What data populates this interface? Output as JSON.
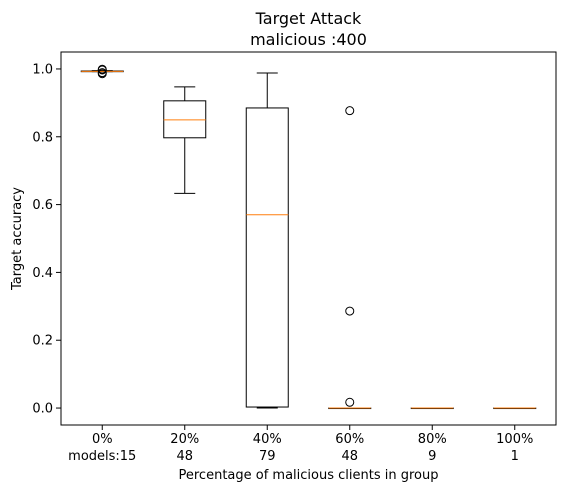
{
  "chart_data": {
    "type": "box",
    "title": "Target Attack",
    "subtitle": "malicious :400",
    "xlabel": "Percentage of malicious clients in group",
    "ylabel": "Target accuracy",
    "ylim": [
      -0.05,
      1.05
    ],
    "yticks": [
      0.0,
      0.2,
      0.4,
      0.6,
      0.8,
      1.0
    ],
    "ytick_labels": [
      "0.0",
      "0.2",
      "0.4",
      "0.6",
      "0.8",
      "1.0"
    ],
    "categories": [
      "0%",
      "20%",
      "40%",
      "60%",
      "80%",
      "100%"
    ],
    "counts": [
      "models:15",
      "48",
      "79",
      "48",
      "9",
      "1"
    ],
    "boxes": [
      {
        "whisker_low": 0.992,
        "q1": 0.992,
        "median": 0.993,
        "q3": 0.994,
        "whisker_high": 0.995,
        "outliers": [
          0.986,
          0.989,
          0.997,
          0.999
        ]
      },
      {
        "whisker_low": 0.633,
        "q1": 0.797,
        "median": 0.85,
        "q3": 0.906,
        "whisker_high": 0.947,
        "outliers": []
      },
      {
        "whisker_low": 0.0,
        "q1": 0.003,
        "median": 0.57,
        "q3": 0.885,
        "whisker_high": 0.988,
        "outliers": []
      },
      {
        "whisker_low": 0.0,
        "q1": 0.0,
        "median": 0.0,
        "q3": 0.0,
        "whisker_high": 0.0,
        "outliers": [
          0.017,
          0.286,
          0.877
        ]
      },
      {
        "whisker_low": 0.0,
        "q1": 0.0,
        "median": 0.0,
        "q3": 0.0,
        "whisker_high": 0.0,
        "outliers": []
      },
      {
        "whisker_low": 0.0,
        "q1": 0.0,
        "median": 0.0,
        "q3": 0.0,
        "whisker_high": 0.0,
        "outliers": []
      }
    ],
    "box_color": "#000000",
    "median_color": "#ff7f0e",
    "grid": false
  }
}
